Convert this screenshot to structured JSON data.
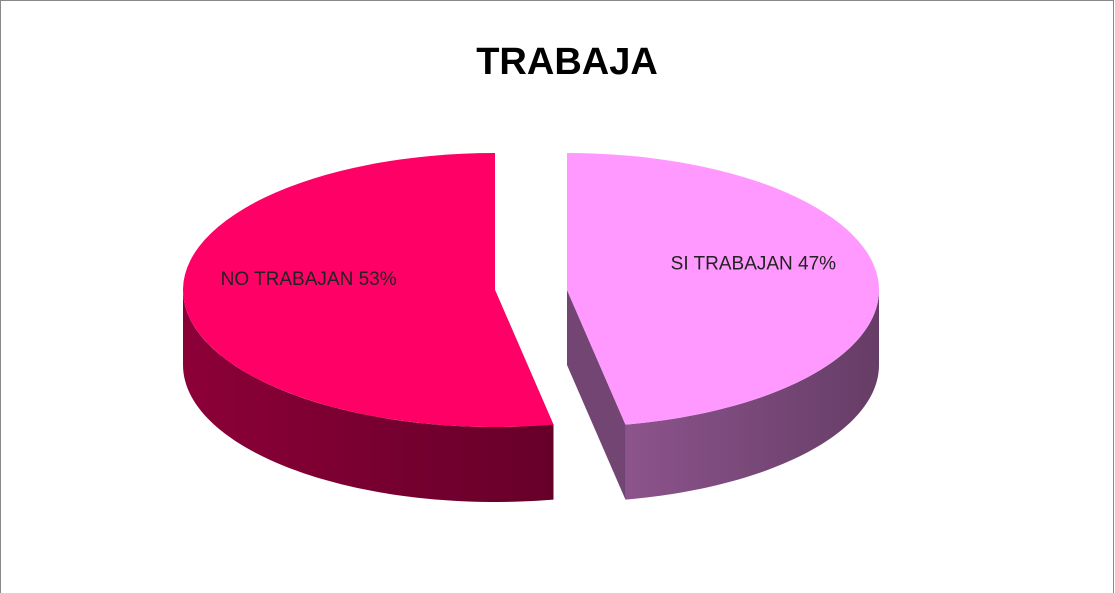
{
  "chart_data": {
    "type": "pie",
    "title": "TRABAJA",
    "categories": [
      "NO TRABAJAN",
      "SI TRABAJAN"
    ],
    "values": [
      53,
      47
    ],
    "value_labels": [
      "NO TRABAJAN 53%",
      "SI TRABAJAN 47%"
    ],
    "colors": [
      "#ff0066",
      "#ff99ff"
    ]
  }
}
